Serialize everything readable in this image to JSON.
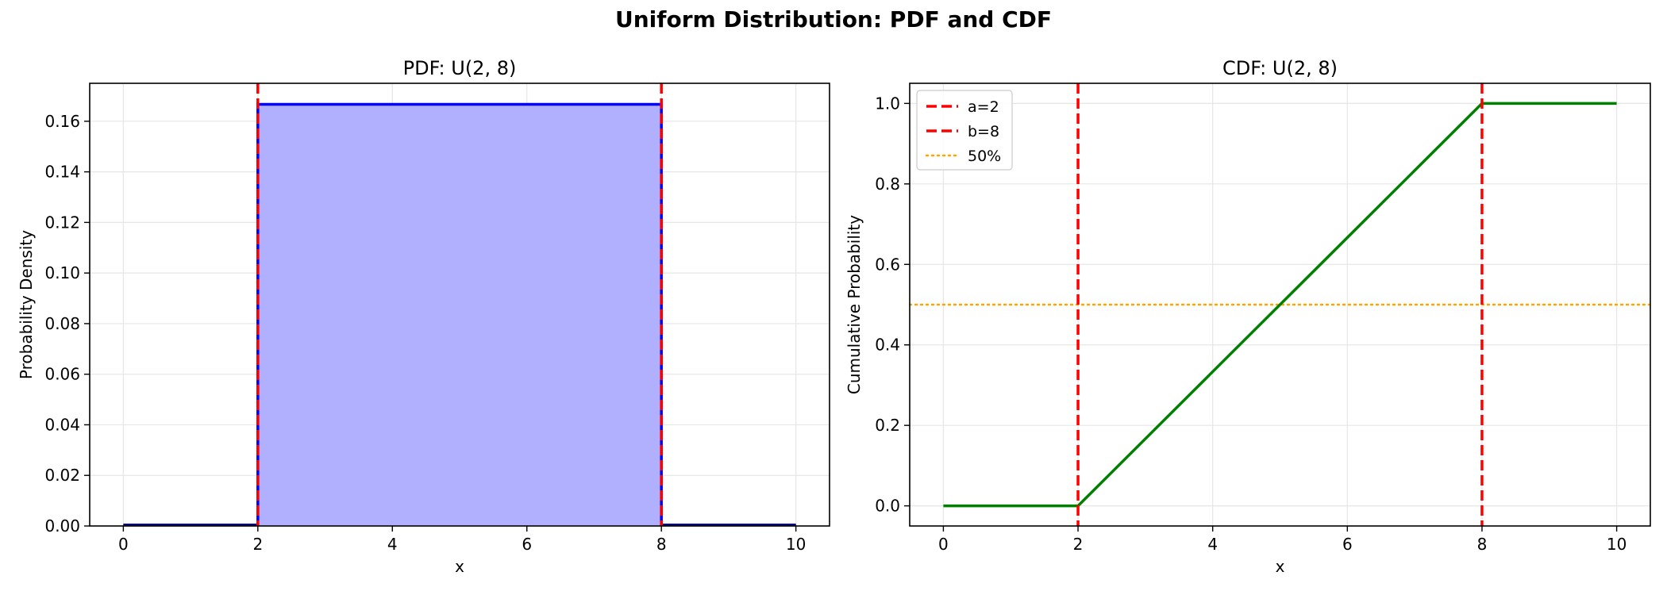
{
  "title": "Uniform Distribution: PDF and CDF",
  "colors": {
    "pdf_line": "#0000ff",
    "pdf_fill": "#b0b0ff",
    "cdf_line": "#008000",
    "bound_line": "#ff0000",
    "median_line": "#ffa500",
    "grid": "#e6e6e6"
  },
  "chart_data": [
    {
      "type": "area",
      "title": "PDF: U(2, 8)",
      "xlabel": "x",
      "ylabel": "Probability Density",
      "xlim": [
        -0.5,
        10.5
      ],
      "ylim": [
        0,
        0.175
      ],
      "xticks": [
        0,
        2,
        4,
        6,
        8,
        10
      ],
      "yticks": [
        0.0,
        0.02,
        0.04,
        0.06,
        0.08,
        0.1,
        0.12,
        0.14,
        0.16
      ],
      "ytick_labels": [
        "0.00",
        "0.02",
        "0.04",
        "0.06",
        "0.08",
        "0.10",
        "0.12",
        "0.14",
        "0.16"
      ],
      "grid": true,
      "series": [
        {
          "x": [
            0,
            2,
            2,
            8,
            8,
            10
          ],
          "y": [
            0,
            0,
            0.1667,
            0.1667,
            0,
            0
          ]
        }
      ],
      "vlines": [
        2,
        8
      ]
    },
    {
      "type": "line",
      "title": "CDF: U(2, 8)",
      "xlabel": "x",
      "ylabel": "Cumulative Probability",
      "xlim": [
        -0.5,
        10.5
      ],
      "ylim": [
        -0.05,
        1.05
      ],
      "xticks": [
        0,
        2,
        4,
        6,
        8,
        10
      ],
      "yticks": [
        0.0,
        0.2,
        0.4,
        0.6,
        0.8,
        1.0
      ],
      "ytick_labels": [
        "0.0",
        "0.2",
        "0.4",
        "0.6",
        "0.8",
        "1.0"
      ],
      "grid": true,
      "series": [
        {
          "x": [
            0,
            2,
            8,
            10
          ],
          "y": [
            0,
            0,
            1,
            1
          ]
        }
      ],
      "vlines": [
        2,
        8
      ],
      "hline": 0.5,
      "legend": {
        "placement": "top-left",
        "entries": [
          "a=2",
          "b=8",
          "50%"
        ]
      }
    }
  ]
}
